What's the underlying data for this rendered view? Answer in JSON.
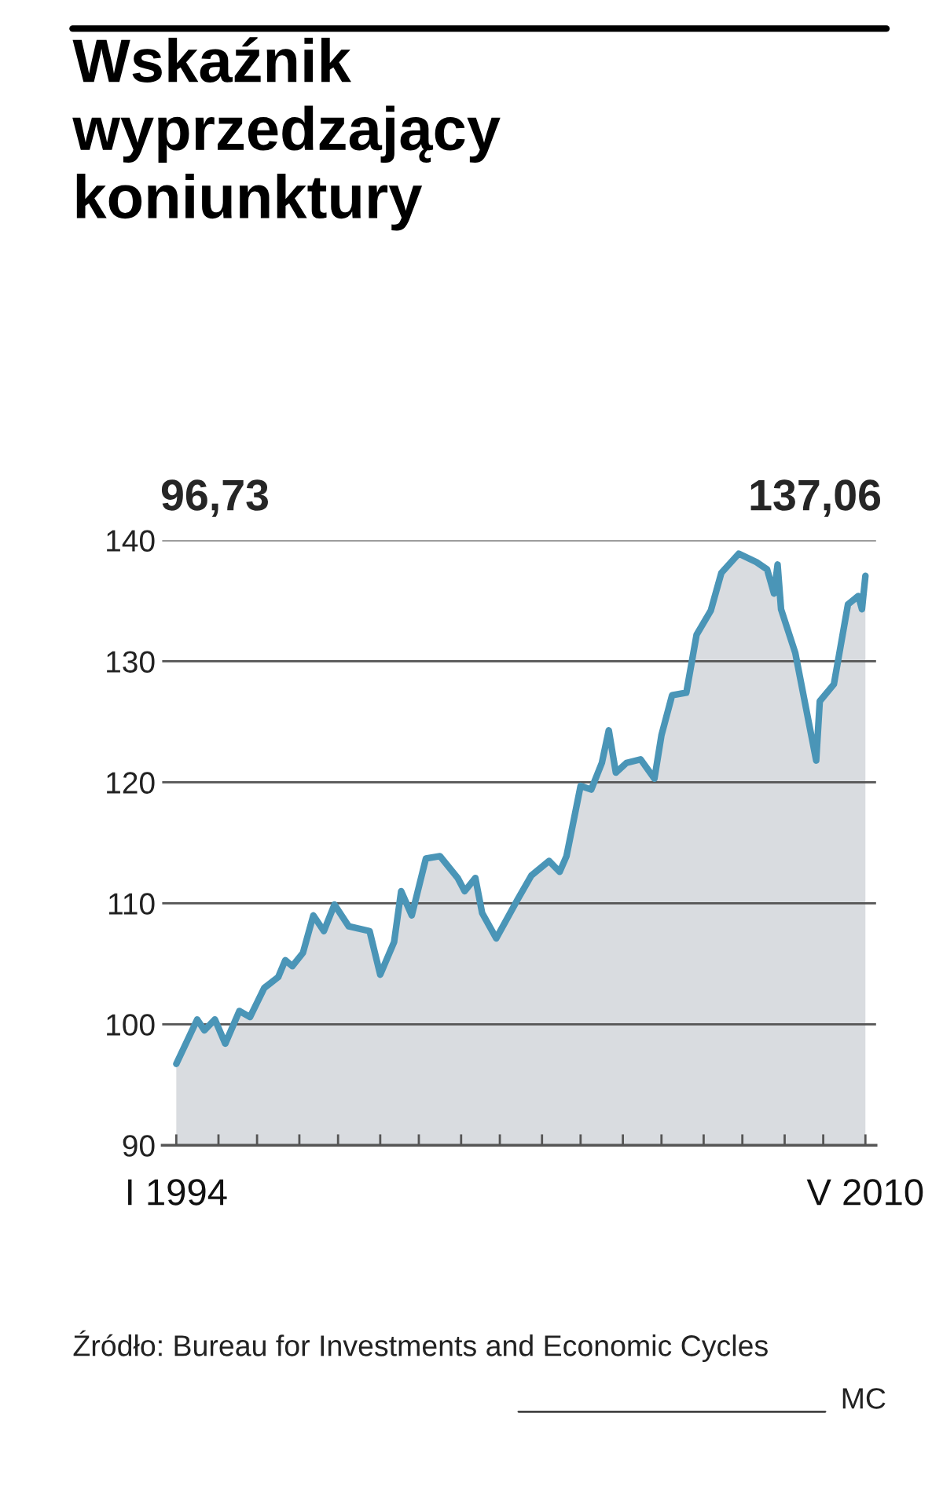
{
  "chart_data": {
    "type": "area",
    "title": "Wskaźnik wyprzedzający koniunktury",
    "x": [
      "1994-01",
      "1994-07",
      "1994-09",
      "1994-12",
      "1995-03",
      "1995-07",
      "1995-10",
      "1996-02",
      "1996-06",
      "1996-08",
      "1996-10",
      "1997-01",
      "1997-04",
      "1997-07",
      "1997-10",
      "1998-02",
      "1998-08",
      "1998-11",
      "1999-03",
      "1999-05",
      "1999-08",
      "1999-12",
      "2000-04",
      "2000-09",
      "2000-11",
      "2001-02",
      "2001-04",
      "2001-08",
      "2002-02",
      "2002-06",
      "2002-11",
      "2003-02",
      "2003-04",
      "2003-08",
      "2003-11",
      "2004-02",
      "2004-04",
      "2004-06",
      "2004-09",
      "2005-01",
      "2005-05",
      "2005-07",
      "2005-10",
      "2006-02",
      "2006-05",
      "2006-09",
      "2006-12",
      "2007-05",
      "2007-10",
      "2008-01",
      "2008-03",
      "2008-04",
      "2008-05",
      "2008-09",
      "2009-03",
      "2009-04",
      "2009-08",
      "2009-10",
      "2009-12",
      "2010-03",
      "2010-04",
      "2010-05"
    ],
    "series": [
      {
        "color": "#4a95b7",
        "values": [
          96.73,
          100.4,
          99.5,
          100.4,
          98.4,
          101.1,
          100.6,
          103.0,
          103.9,
          105.3,
          104.8,
          105.9,
          109.0,
          107.7,
          109.9,
          108.1,
          107.7,
          104.1,
          106.8,
          111.0,
          109.0,
          113.7,
          113.9,
          112.1,
          111.0,
          112.1,
          109.2,
          107.1,
          110.3,
          112.3,
          113.5,
          112.6,
          113.9,
          119.7,
          119.4,
          121.6,
          124.3,
          120.8,
          121.6,
          121.9,
          120.3,
          123.9,
          127.2,
          127.4,
          132.2,
          134.2,
          137.3,
          138.9,
          138.2,
          137.6,
          135.6,
          138.0,
          134.3,
          130.7,
          121.8,
          126.7,
          128.1,
          131.4,
          134.7,
          135.4,
          134.3,
          137.06
        ]
      }
    ],
    "xlim": [
      "1993-09",
      "2010-08"
    ],
    "xticks": [
      {
        "value": "1994-01",
        "label": "I 1994"
      },
      {
        "value": "1995-01",
        "label": null
      },
      {
        "value": "1995-12",
        "label": null
      },
      {
        "value": "1996-12",
        "label": null
      },
      {
        "value": "1997-11",
        "label": null
      },
      {
        "value": "1998-11",
        "label": null
      },
      {
        "value": "1999-10",
        "label": null
      },
      {
        "value": "2000-10",
        "label": null
      },
      {
        "value": "2001-09",
        "label": null
      },
      {
        "value": "2002-09",
        "label": null
      },
      {
        "value": "2003-08",
        "label": null
      },
      {
        "value": "2004-08",
        "label": null
      },
      {
        "value": "2005-07",
        "label": null
      },
      {
        "value": "2006-07",
        "label": null
      },
      {
        "value": "2007-06",
        "label": null
      },
      {
        "value": "2008-06",
        "label": null
      },
      {
        "value": "2009-05",
        "label": null
      },
      {
        "value": "2010-05",
        "label": "V 2010"
      }
    ],
    "ylim": [
      90,
      140
    ],
    "yticks": [
      90,
      100,
      110,
      120,
      130,
      140
    ],
    "grid": "y",
    "annotations": [
      "96,73",
      "137,06",
      "Źródło: Bureau for Investments and Economic Cycles",
      "MC"
    ]
  }
}
